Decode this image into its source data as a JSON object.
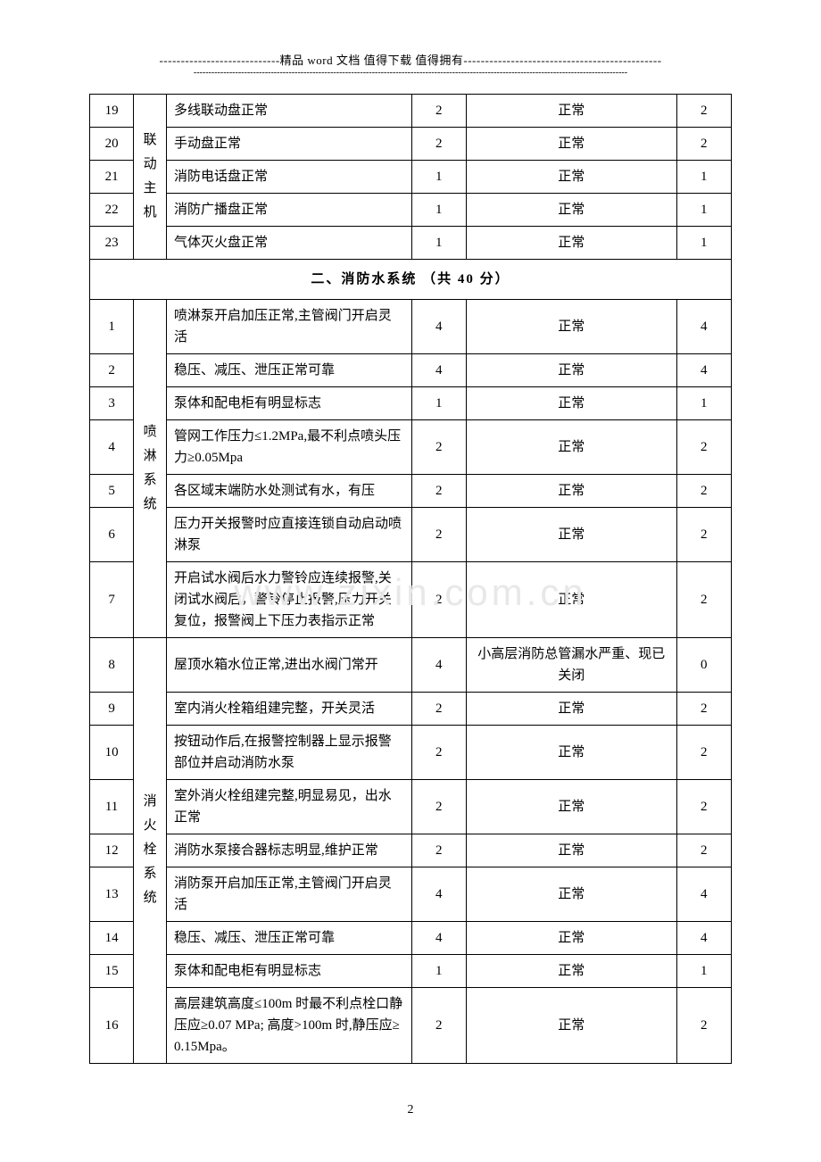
{
  "header": {
    "prefix_dashes": "----------------------------",
    "text": "精品 word 文档  值得下载  值得拥有",
    "suffix_dashes": "----------------------------------------------",
    "long_dashes": "--------------------------------------------------------------------------------------------------------------------------------------------------"
  },
  "watermark": "www.zixin.com.cn",
  "page_number": "2",
  "categories": {
    "liandong": "联动主机",
    "penlin": "喷淋系统",
    "xiaohuoshuan": "消火栓系统"
  },
  "section2_title": "二、消防水系统  （共 40 分）",
  "rows_a": [
    {
      "n": "19",
      "desc": "多线联动盘正常",
      "s": "2",
      "status": "正常",
      "g": "2"
    },
    {
      "n": "20",
      "desc": "手动盘正常",
      "s": "2",
      "status": "正常",
      "g": "2"
    },
    {
      "n": "21",
      "desc": "消防电话盘正常",
      "s": "1",
      "status": "正常",
      "g": "1"
    },
    {
      "n": "22",
      "desc": "消防广播盘正常",
      "s": "1",
      "status": "正常",
      "g": "1"
    },
    {
      "n": "23",
      "desc": "气体灭火盘正常",
      "s": "1",
      "status": "正常",
      "g": "1"
    }
  ],
  "rows_b": [
    {
      "n": "1",
      "desc": "喷淋泵开启加压正常,主管阀门开启灵活",
      "s": "4",
      "status": "正常",
      "g": "4"
    },
    {
      "n": "2",
      "desc": "稳压、减压、泄压正常可靠",
      "s": "4",
      "status": "正常",
      "g": "4"
    },
    {
      "n": "3",
      "desc": "泵体和配电柜有明显标志",
      "s": "1",
      "status": "正常",
      "g": "1"
    },
    {
      "n": "4",
      "desc": "管网工作压力≤1.2MPa,最不利点喷头压力≥0.05Mpa",
      "s": "2",
      "status": "正常",
      "g": "2"
    },
    {
      "n": "5",
      "desc": "各区域末端防水处测试有水，有压",
      "s": "2",
      "status": "正常",
      "g": "2"
    },
    {
      "n": "6",
      "desc": "压力开关报警时应直接连锁自动启动喷淋泵",
      "s": "2",
      "status": "正常",
      "g": "2"
    },
    {
      "n": "7",
      "desc": "开启试水阀后水力警铃应连续报警,关闭试水阀后，警铃停止报警,压力开关 复位，报警阀上下压力表指示正常",
      "s": "2",
      "status": "正常",
      "g": "2"
    }
  ],
  "rows_c": [
    {
      "n": "8",
      "desc": "屋顶水箱水位正常,进出水阀门常开",
      "s": "4",
      "status": "小高层消防总管漏水严重、现已关闭",
      "g": "0"
    },
    {
      "n": "9",
      "desc": "室内消火栓箱组建完整，开关灵活",
      "s": "2",
      "status": "正常",
      "g": "2"
    },
    {
      "n": "10",
      "desc": "按钮动作后,在报警控制器上显示报警部位并启动消防水泵",
      "s": "2",
      "status": "正常",
      "g": "2"
    },
    {
      "n": "11",
      "desc": "室外消火栓组建完整,明显易见，出水正常",
      "s": "2",
      "status": "正常",
      "g": "2"
    },
    {
      "n": "12",
      "desc": "消防水泵接合器标志明显,维护正常",
      "s": "2",
      "status": "正常",
      "g": "2"
    },
    {
      "n": "13",
      "desc": "消防泵开启加压正常,主管阀门开启灵活",
      "s": "4",
      "status": "正常",
      "g": "4"
    },
    {
      "n": "14",
      "desc": "稳压、减压、泄压正常可靠",
      "s": "4",
      "status": "正常",
      "g": "4"
    },
    {
      "n": "15",
      "desc": "泵体和配电柜有明显标志",
      "s": "1",
      "status": "正常",
      "g": "1"
    },
    {
      "n": "16",
      "desc": "高层建筑高度≤100m 时最不利点栓口静压应≥0.07 MPa; 高度>100m 时,静压应≥0.15Mpa。",
      "s": "2",
      "status": "正常",
      "g": "2"
    }
  ]
}
